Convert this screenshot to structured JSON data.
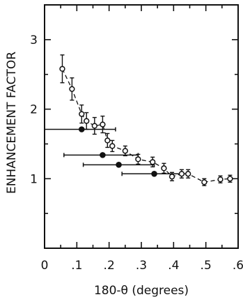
{
  "chart_data": {
    "type": "scatter",
    "title": "",
    "xlabel": "180-θ (degrees)",
    "ylabel": "ENHANCEMENT FACTOR",
    "xlim": [
      0,
      0.6
    ],
    "ylim": [
      0,
      3.5
    ],
    "x_ticks": [
      0,
      0.1,
      0.2,
      0.3,
      0.4,
      0.5,
      0.6
    ],
    "x_tick_labels": [
      "0",
      ".1",
      ".2",
      ".3",
      ".4",
      ".5",
      ".6"
    ],
    "y_ticks": [
      1,
      2,
      3
    ],
    "y_tick_labels": [
      "1",
      "2",
      "3"
    ],
    "grid": false,
    "series": [
      {
        "marker": "open-circle",
        "line": "dashed",
        "points": [
          {
            "x": 0.055,
            "y": 2.58,
            "err": 0.2
          },
          {
            "x": 0.085,
            "y": 2.29,
            "err": 0.16
          },
          {
            "x": 0.115,
            "y": 1.93,
            "err": 0.13
          },
          {
            "x": 0.13,
            "y": 1.83,
            "err": 0.12
          },
          {
            "x": 0.155,
            "y": 1.76,
            "err": 0.12
          },
          {
            "x": 0.18,
            "y": 1.78,
            "err": 0.12
          },
          {
            "x": 0.195,
            "y": 1.55,
            "err": 0.1
          },
          {
            "x": 0.21,
            "y": 1.47,
            "err": 0.08
          },
          {
            "x": 0.25,
            "y": 1.4,
            "err": 0.07
          },
          {
            "x": 0.29,
            "y": 1.28,
            "err": 0.07
          },
          {
            "x": 0.335,
            "y": 1.24,
            "err": 0.07
          },
          {
            "x": 0.37,
            "y": 1.15,
            "err": 0.07
          },
          {
            "x": 0.395,
            "y": 1.03,
            "err": 0.06
          },
          {
            "x": 0.425,
            "y": 1.07,
            "err": 0.06
          },
          {
            "x": 0.445,
            "y": 1.07,
            "err": 0.06
          },
          {
            "x": 0.495,
            "y": 0.95,
            "err": 0.05
          },
          {
            "x": 0.545,
            "y": 0.99,
            "err": 0.05
          },
          {
            "x": 0.575,
            "y": 1.0,
            "err": 0.05
          }
        ]
      },
      {
        "marker": "filled-circle",
        "line": "none",
        "points": [
          {
            "x": 0.115,
            "y": 1.71,
            "xmin": 0.0,
            "xmax": 0.22
          },
          {
            "x": 0.18,
            "y": 1.34,
            "xmin": 0.06,
            "xmax": 0.29
          },
          {
            "x": 0.23,
            "y": 1.2,
            "xmin": 0.12,
            "xmax": 0.34
          },
          {
            "x": 0.34,
            "y": 1.07,
            "xmin": 0.24,
            "xmax": 0.44
          }
        ]
      }
    ]
  }
}
